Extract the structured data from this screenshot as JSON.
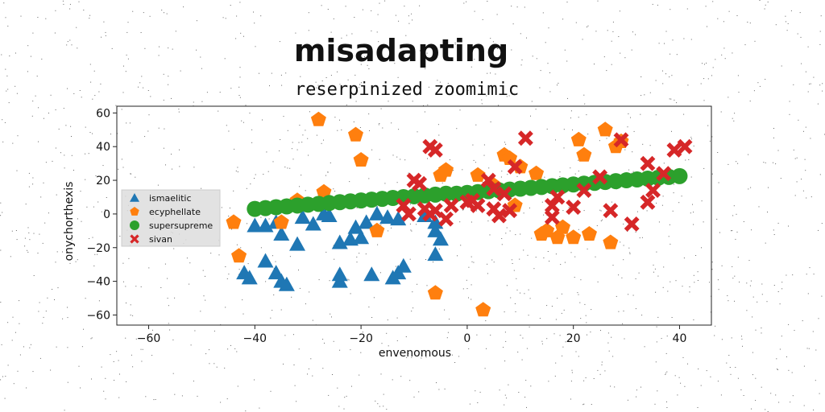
{
  "chart_data": {
    "type": "scatter",
    "title": "misadapting",
    "subtitle": "reserpinized zoomimic",
    "xlabel": "envenomous",
    "ylabel": "onychorthexis",
    "xlim": [
      -66,
      46
    ],
    "ylim": [
      -66,
      64
    ],
    "xticks": [
      "−60",
      "−40",
      "−20",
      "0",
      "20",
      "40"
    ],
    "yticks": [
      "−60",
      "−40",
      "−20",
      "0",
      "20",
      "40",
      "60"
    ],
    "legend_position": "center-left",
    "grid": false,
    "series": [
      {
        "name": "ismaelitic",
        "marker": "triangle",
        "color": "#1f77b4",
        "points": [
          [
            -40,
            -7
          ],
          [
            -38,
            -7
          ],
          [
            -36,
            -5
          ],
          [
            -35,
            -12
          ],
          [
            -32,
            -18
          ],
          [
            -31,
            -2
          ],
          [
            -29,
            -6
          ],
          [
            -27,
            0
          ],
          [
            -26,
            -1
          ],
          [
            -24,
            -17
          ],
          [
            -22,
            -15
          ],
          [
            -21,
            -8
          ],
          [
            -19,
            -5
          ],
          [
            -17,
            0
          ],
          [
            -15,
            -2
          ],
          [
            -13,
            -3
          ],
          [
            -8,
            -1
          ],
          [
            -6,
            -10
          ],
          [
            -5,
            -15
          ],
          [
            -6,
            -5
          ],
          [
            -6,
            -24
          ],
          [
            -20,
            -14
          ],
          [
            -24,
            -40
          ],
          [
            -24,
            -36
          ],
          [
            -42,
            -35
          ],
          [
            -41,
            -38
          ],
          [
            -38,
            -28
          ],
          [
            -36,
            -35
          ],
          [
            -35,
            -40
          ],
          [
            -34,
            -42
          ],
          [
            -18,
            -36
          ],
          [
            -14,
            -38
          ],
          [
            -13,
            -35
          ],
          [
            -12,
            -31
          ]
        ]
      },
      {
        "name": "ecyphellate",
        "marker": "pentagon",
        "color": "#ff7f0e",
        "points": [
          [
            -28,
            56
          ],
          [
            -21,
            47
          ],
          [
            -20,
            32
          ],
          [
            -44,
            -5
          ],
          [
            -43,
            -25
          ],
          [
            -35,
            -5
          ],
          [
            -32,
            8
          ],
          [
            -27,
            13
          ],
          [
            -17,
            -10
          ],
          [
            -5,
            23
          ],
          [
            -4,
            26
          ],
          [
            -6,
            -47
          ],
          [
            3,
            -57
          ],
          [
            2,
            23
          ],
          [
            5,
            17
          ],
          [
            7,
            35
          ],
          [
            8,
            33
          ],
          [
            10,
            28
          ],
          [
            9,
            5
          ],
          [
            13,
            24
          ],
          [
            14,
            -12
          ],
          [
            15,
            -10
          ],
          [
            17,
            -14
          ],
          [
            18,
            -8
          ],
          [
            20,
            -14
          ],
          [
            21,
            44
          ],
          [
            22,
            35
          ],
          [
            23,
            -12
          ],
          [
            26,
            50
          ],
          [
            27,
            -17
          ],
          [
            28,
            40
          ],
          [
            29,
            43
          ]
        ]
      },
      {
        "name": "supersupreme",
        "marker": "circle",
        "color": "#2ca02c",
        "points": [
          [
            -40,
            3
          ],
          [
            -38,
            3.5
          ],
          [
            -36,
            4
          ],
          [
            -34,
            4.5
          ],
          [
            -32,
            5
          ],
          [
            -30,
            5.5
          ],
          [
            -28,
            6
          ],
          [
            -26,
            6.5
          ],
          [
            -24,
            7
          ],
          [
            -22,
            7.5
          ],
          [
            -20,
            8
          ],
          [
            -18,
            8.5
          ],
          [
            -16,
            9
          ],
          [
            -14,
            9.5
          ],
          [
            -12,
            10
          ],
          [
            -10,
            10.5
          ],
          [
            -8,
            11
          ],
          [
            -6,
            11.5
          ],
          [
            -4,
            12
          ],
          [
            -2,
            12
          ],
          [
            0,
            12.5
          ],
          [
            2,
            13
          ],
          [
            4,
            13.5
          ],
          [
            6,
            14
          ],
          [
            8,
            14.5
          ],
          [
            10,
            15
          ],
          [
            12,
            15.5
          ],
          [
            14,
            16
          ],
          [
            16,
            16.5
          ],
          [
            18,
            17
          ],
          [
            20,
            17.5
          ],
          [
            22,
            18
          ],
          [
            24,
            18.5
          ],
          [
            26,
            19
          ],
          [
            28,
            19.5
          ],
          [
            30,
            20
          ],
          [
            32,
            20.5
          ],
          [
            34,
            21
          ],
          [
            36,
            21.5
          ],
          [
            38,
            22
          ],
          [
            40,
            22.5
          ]
        ]
      },
      {
        "name": "sivan",
        "marker": "x",
        "color": "#d62728",
        "points": [
          [
            -7,
            40
          ],
          [
            -6,
            38
          ],
          [
            -10,
            20
          ],
          [
            -9,
            18
          ],
          [
            -12,
            5
          ],
          [
            -11,
            0
          ],
          [
            -8,
            3
          ],
          [
            -7,
            0
          ],
          [
            -6,
            2
          ],
          [
            -4,
            -3
          ],
          [
            -3,
            5
          ],
          [
            0,
            7
          ],
          [
            1,
            8
          ],
          [
            2,
            5
          ],
          [
            4,
            20
          ],
          [
            5,
            15
          ],
          [
            5,
            3
          ],
          [
            6,
            -1
          ],
          [
            7,
            12
          ],
          [
            8,
            2
          ],
          [
            9,
            28
          ],
          [
            11,
            45
          ],
          [
            16,
            5
          ],
          [
            16,
            -2
          ],
          [
            17,
            10
          ],
          [
            20,
            4
          ],
          [
            22,
            14
          ],
          [
            25,
            22
          ],
          [
            27,
            2
          ],
          [
            29,
            44
          ],
          [
            31,
            -6
          ],
          [
            34,
            30
          ],
          [
            34,
            7
          ],
          [
            35,
            14
          ],
          [
            37,
            24
          ],
          [
            39,
            38
          ],
          [
            41,
            40
          ]
        ]
      }
    ]
  }
}
